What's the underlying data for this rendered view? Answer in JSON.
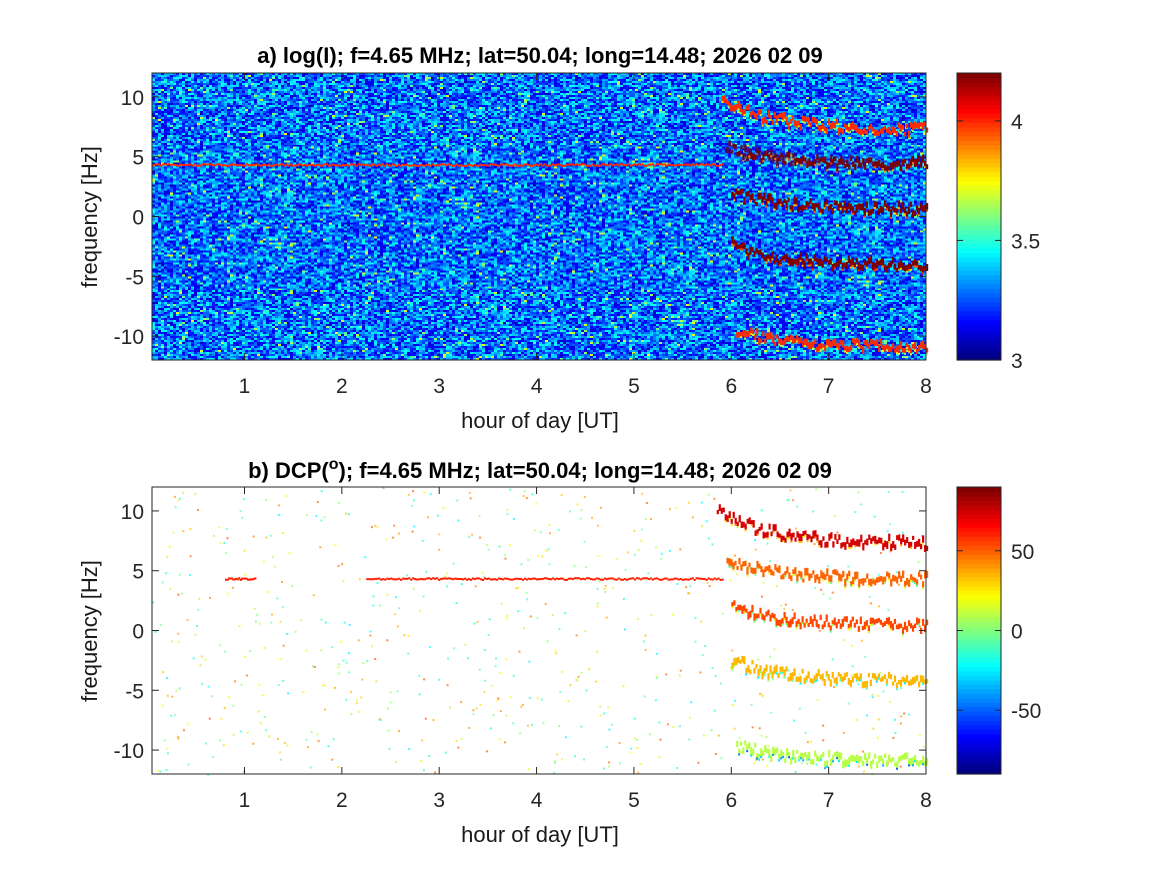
{
  "chart_data": [
    {
      "type": "heatmap",
      "title_prefix": "a) log(I); f=4.65 MHz;  lat=50.04; long=14.48; 2026 02 09",
      "xlabel": "hour of day [UT]",
      "ylabel": "frequency [Hz]",
      "xlim": [
        0.05,
        8
      ],
      "ylim": [
        -12,
        12
      ],
      "x_ticks": [
        1,
        2,
        3,
        4,
        5,
        6,
        7,
        8
      ],
      "y_ticks": [
        -10,
        -5,
        0,
        5,
        10
      ],
      "colorbar": {
        "range": [
          3,
          4.2
        ],
        "ticks": [
          3,
          3.5,
          4
        ],
        "colormap": "jet"
      },
      "background": "noise",
      "features": [
        {
          "name": "line",
          "x_start": 0.05,
          "x_end": 5.9,
          "y": 4.3,
          "level": 4.0
        },
        {
          "name": "trace",
          "x_start": 5.9,
          "x_end": 8,
          "y_start": 9.8,
          "y_end": 7.3,
          "level": 4.0
        },
        {
          "name": "trace",
          "x_start": 5.95,
          "x_end": 8,
          "y_start": 5.8,
          "y_end": 4.4,
          "level": 4.2
        },
        {
          "name": "trace",
          "x_start": 6.0,
          "x_end": 8,
          "y_start": 2.0,
          "y_end": 0.6,
          "level": 4.2
        },
        {
          "name": "trace",
          "x_start": 6.0,
          "x_end": 8,
          "y_start": -2.4,
          "y_end": -4.1,
          "level": 4.2
        },
        {
          "name": "trace",
          "x_start": 6.05,
          "x_end": 8,
          "y_start": -9.6,
          "y_end": -10.9,
          "level": 4.0
        }
      ]
    },
    {
      "type": "heatmap",
      "title_prefix": "b) DCP(",
      "title_superscript": "o",
      "title_suffix": "); f=4.65 MHz;  lat=50.04; long=14.48; 2026 02 09",
      "xlabel": "hour of day [UT]",
      "ylabel": "frequency [Hz]",
      "xlim": [
        0.05,
        8
      ],
      "ylim": [
        -12,
        12
      ],
      "x_ticks": [
        1,
        2,
        3,
        4,
        5,
        6,
        7,
        8
      ],
      "y_ticks": [
        -10,
        -5,
        0,
        5,
        10
      ],
      "colorbar": {
        "range": [
          -90,
          90
        ],
        "ticks": [
          -50,
          0,
          50
        ],
        "colormap": "jet"
      },
      "background": "sparse",
      "features": [
        {
          "name": "line",
          "x_start": 0.8,
          "x_end": 1.1,
          "y": 4.3,
          "level": 62
        },
        {
          "name": "line",
          "x_start": 2.25,
          "x_end": 5.9,
          "y": 4.3,
          "level": 62
        },
        {
          "name": "trace",
          "x_start": 5.85,
          "x_end": 8,
          "y_start": 10.0,
          "y_end": 7.3,
          "level": 75
        },
        {
          "name": "trace",
          "x_start": 5.95,
          "x_end": 8,
          "y_start": 5.8,
          "y_end": 4.3,
          "level": 50
        },
        {
          "name": "trace",
          "x_start": 6.0,
          "x_end": 8,
          "y_start": 2.2,
          "y_end": 0.4,
          "level": 55
        },
        {
          "name": "trace",
          "x_start": 6.0,
          "x_end": 8,
          "y_start": -2.5,
          "y_end": -4.2,
          "level": 35
        },
        {
          "name": "trace",
          "x_start": 6.05,
          "x_end": 8,
          "y_start": -9.6,
          "y_end": -10.9,
          "level": 10
        }
      ]
    }
  ]
}
